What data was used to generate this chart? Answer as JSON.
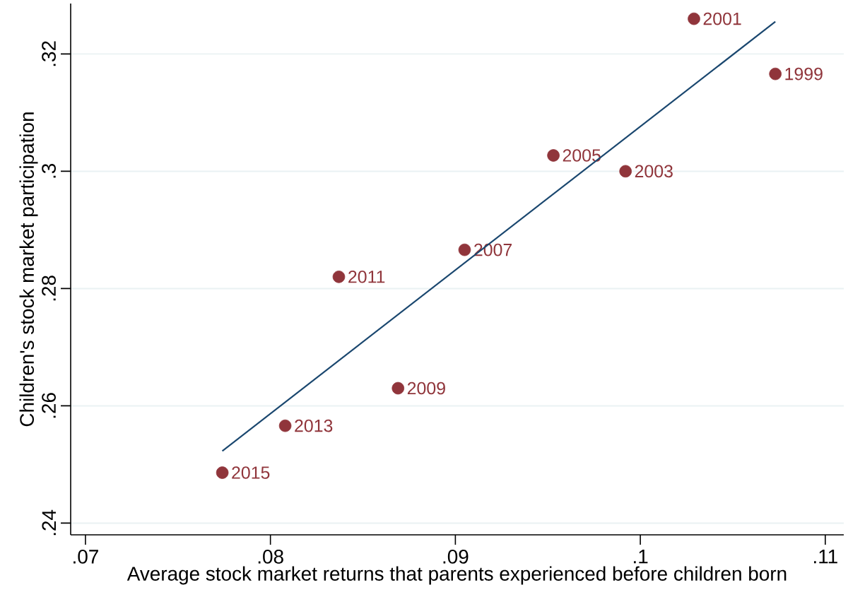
{
  "chart_data": {
    "type": "scatter",
    "xlabel": "Average stock market returns that parents experienced before children born",
    "ylabel": "Children's stock market participation",
    "xlim": [
      0.0692,
      0.111
    ],
    "ylim": [
      0.238,
      0.3286
    ],
    "xticks": [
      {
        "value": 0.07,
        "label": ".07"
      },
      {
        "value": 0.08,
        "label": ".08"
      },
      {
        "value": 0.09,
        "label": ".09"
      },
      {
        "value": 0.1,
        "label": ".1"
      },
      {
        "value": 0.11,
        "label": ".11"
      }
    ],
    "yticks": [
      {
        "value": 0.24,
        "label": ".24"
      },
      {
        "value": 0.26,
        "label": ".26"
      },
      {
        "value": 0.28,
        "label": ".28"
      },
      {
        "value": 0.3,
        "label": ".3"
      },
      {
        "value": 0.32,
        "label": ".32"
      }
    ],
    "grid": "y",
    "marker": "circle",
    "annotations": [
      {
        "text": "1999",
        "x": 0.1073,
        "y": 0.3166
      },
      {
        "text": "2001",
        "x": 0.1029,
        "y": 0.326
      },
      {
        "text": "2003",
        "x": 0.0992,
        "y": 0.3
      },
      {
        "text": "2005",
        "x": 0.0953,
        "y": 0.3027
      },
      {
        "text": "2007",
        "x": 0.0905,
        "y": 0.2866
      },
      {
        "text": "2009",
        "x": 0.0869,
        "y": 0.263
      },
      {
        "text": "2011",
        "x": 0.0837,
        "y": 0.282
      },
      {
        "text": "2013",
        "x": 0.0808,
        "y": 0.2566
      },
      {
        "text": "2015",
        "x": 0.0774,
        "y": 0.2486
      }
    ],
    "series": [
      {
        "color": "#90353b",
        "x": [
          0.1073,
          0.1029,
          0.0992,
          0.0953,
          0.0905,
          0.0869,
          0.0837,
          0.0808,
          0.0774
        ],
        "values": [
          0.3166,
          0.326,
          0.3,
          0.3027,
          0.2866,
          0.263,
          0.282,
          0.2566,
          0.2486
        ]
      },
      {
        "type": "line",
        "color": "#1a476f",
        "marker": "none",
        "x": [
          0.0774,
          0.1073
        ],
        "values": [
          0.2523,
          0.3255
        ]
      }
    ]
  }
}
